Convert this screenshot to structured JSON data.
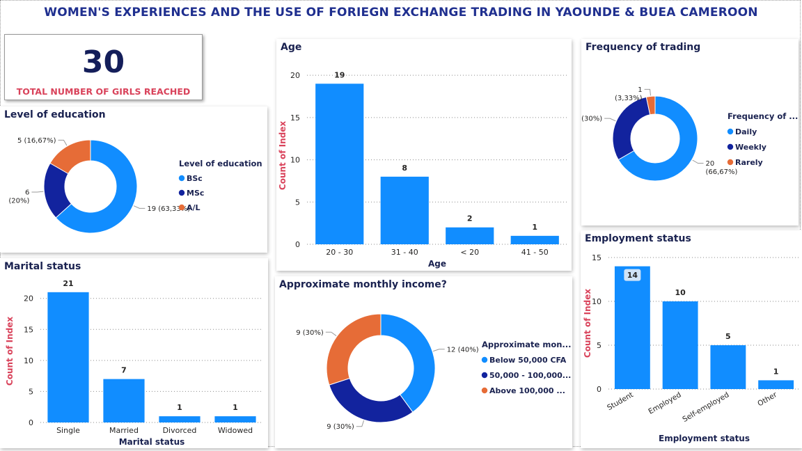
{
  "dashboard": {
    "title": "WOMEN'S EXPERIENCES AND THE USE OF FORIEGN EXCHANGE TRADING IN YAOUNDE & BUEA CAMEROON",
    "kpi_value": "30",
    "kpi_label": "TOTAL NUMBER OF GIRLS REACHED"
  },
  "colors": {
    "blue": "#118DFF",
    "navy": "#12239E",
    "orange": "#E66C37",
    "title": "#1f2f8f",
    "axis_title": "#d9435b"
  },
  "chart_data": [
    {
      "id": "education",
      "type": "pie",
      "donut": true,
      "title": "Level of education",
      "legend_title": "Level of education",
      "legend_position": "right",
      "labels": [
        "BSc",
        "MSc",
        "A/L"
      ],
      "values": [
        19,
        6,
        5
      ],
      "data_labels": [
        "19 (63,33%)",
        "6\n(20%)",
        "5 (16,67%)"
      ]
    },
    {
      "id": "age",
      "type": "bar",
      "title": "Age",
      "xlabel": "Age",
      "ylabel": "Count of Index",
      "categories": [
        "20 - 30",
        "31 - 40",
        "< 20",
        "41 - 50"
      ],
      "values": [
        19,
        8,
        2,
        1
      ],
      "ylim": [
        0,
        21
      ],
      "yticks": [
        0,
        5,
        10,
        15,
        20
      ],
      "grid": true
    },
    {
      "id": "frequency",
      "type": "pie",
      "donut": true,
      "title": "Frequency of trading",
      "legend_title": "Frequency of ...",
      "legend_position": "right",
      "labels": [
        "Daily",
        "Weekly",
        "Rarely"
      ],
      "values": [
        20,
        9,
        1
      ],
      "data_labels": [
        "20\n(66,67%)",
        "9 (30%)",
        "1\n(3,33%)"
      ]
    },
    {
      "id": "marital",
      "type": "bar",
      "title": "Marital status",
      "xlabel": "Marital status",
      "ylabel": "Count of Index",
      "categories": [
        "Single",
        "Married",
        "Divorced",
        "Widowed"
      ],
      "values": [
        21,
        7,
        1,
        1
      ],
      "ylim": [
        0,
        23
      ],
      "yticks": [
        0,
        5,
        10,
        15,
        20
      ],
      "grid": true
    },
    {
      "id": "income",
      "type": "pie",
      "donut": true,
      "title": "Approximate monthly income?",
      "legend_title": "Approximate mon...",
      "legend_position": "right",
      "labels": [
        "Below 50,000 CFA",
        "50,000 - 100,000...",
        "Above 100,000 ..."
      ],
      "values": [
        12,
        9,
        9
      ],
      "data_labels": [
        "12 (40%)",
        "9 (30%)",
        "9 (30%)"
      ]
    },
    {
      "id": "employment",
      "type": "bar",
      "title": "Employment status",
      "xlabel": "Employment status",
      "ylabel": "Count of Index",
      "categories": [
        "Student",
        "Employed",
        "Self-employed",
        "Other"
      ],
      "values": [
        14,
        10,
        5,
        1
      ],
      "ylim": [
        0,
        15
      ],
      "yticks": [
        0,
        5,
        10,
        15
      ],
      "grid": true,
      "highlighted_label": 0
    }
  ]
}
